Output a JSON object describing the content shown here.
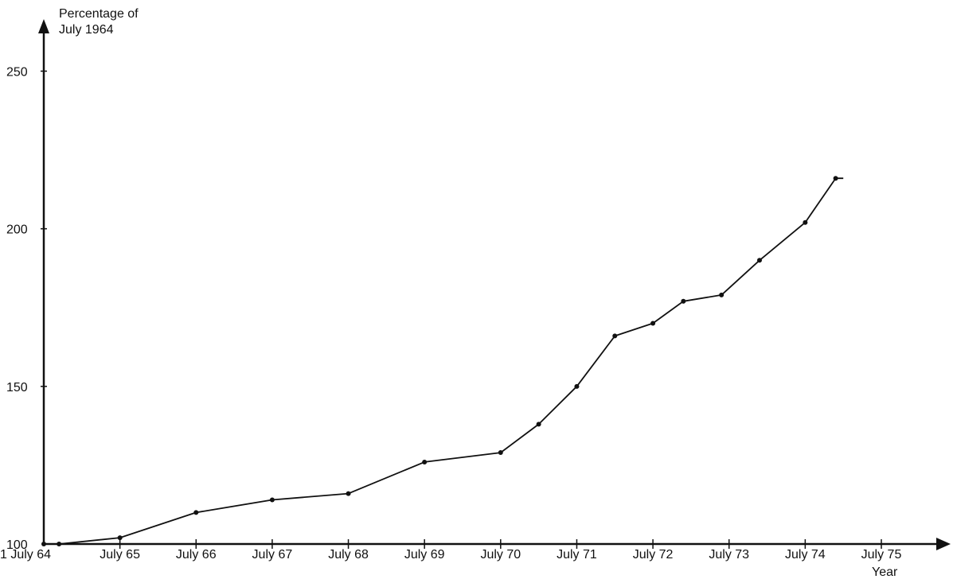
{
  "chart_data": {
    "type": "line",
    "ylabel": "Percentage of July 1964",
    "ylabel_lines": [
      "Percentage of",
      "July 1964"
    ],
    "xlabel": "Year",
    "x_tick_labels": [
      "1 July 64",
      "July 65",
      "July 66",
      "July 67",
      "July 68",
      "July 69",
      "July 70",
      "July 71",
      "July 72",
      "July 73",
      "July 74",
      "July 75"
    ],
    "y_tick_labels": [
      "100",
      "150",
      "200",
      "250"
    ],
    "y_ticks": [
      100,
      150,
      200,
      250
    ],
    "xlim": [
      1964.5,
      1975.5
    ],
    "ylim": [
      100,
      265
    ],
    "grid": false,
    "color": "#111111",
    "series": [
      {
        "x": [
          1964.5,
          1964.7,
          1965.5,
          1966.5,
          1967.5,
          1968.5,
          1969.5,
          1970.5,
          1971.0,
          1971.5,
          1972.0,
          1972.5,
          1972.9,
          1973.4,
          1973.9,
          1974.5,
          1974.9,
          1975.0
        ],
        "y": [
          100,
          100,
          102,
          110,
          114,
          116,
          126,
          129,
          138,
          150,
          166,
          170,
          177,
          179,
          190,
          202,
          216,
          216
        ],
        "markers": [
          true,
          true,
          true,
          true,
          true,
          true,
          true,
          true,
          true,
          true,
          true,
          true,
          true,
          true,
          true,
          true,
          true,
          false
        ]
      }
    ]
  }
}
